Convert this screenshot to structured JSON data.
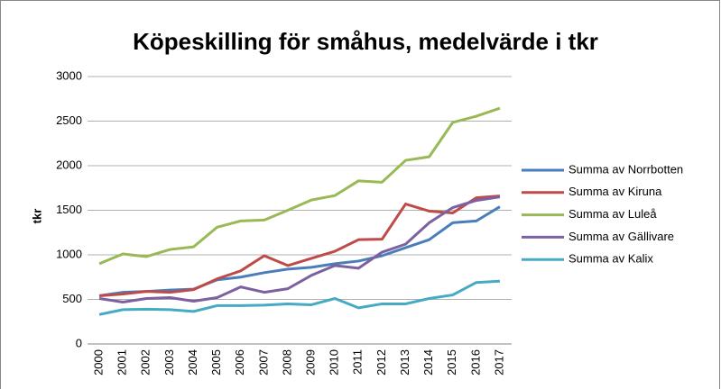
{
  "chart_data": {
    "type": "line",
    "title": "Köpeskilling för småhus, medelvärde i tkr",
    "y_label": "tkr",
    "categories": [
      "2000",
      "2001",
      "2002",
      "2003",
      "2004",
      "2005",
      "2006",
      "2007",
      "2008",
      "2009",
      "2010",
      "2011",
      "2012",
      "2013",
      "2014",
      "2015",
      "2016",
      "2017"
    ],
    "series": [
      {
        "name": "Summa av Norrbotten",
        "color": "#4a7ebb",
        "values": [
          540,
          580,
          590,
          605,
          615,
          720,
          750,
          800,
          840,
          860,
          900,
          930,
          990,
          1080,
          1170,
          1360,
          1380,
          1540
        ]
      },
      {
        "name": "Summa av Kiruna",
        "color": "#be4b48",
        "values": [
          540,
          560,
          590,
          580,
          610,
          730,
          820,
          990,
          880,
          960,
          1040,
          1170,
          1175,
          1570,
          1490,
          1470,
          1640,
          1660
        ]
      },
      {
        "name": "Summa av Luleå",
        "color": "#98b954",
        "values": [
          900,
          1010,
          980,
          1060,
          1090,
          1310,
          1380,
          1390,
          1500,
          1615,
          1665,
          1830,
          1815,
          2060,
          2100,
          2485,
          2555,
          2645
        ]
      },
      {
        "name": "Summa av Gällivare",
        "color": "#7d60a0",
        "values": [
          510,
          470,
          510,
          520,
          480,
          520,
          640,
          580,
          620,
          770,
          880,
          850,
          1030,
          1120,
          1360,
          1530,
          1610,
          1650
        ]
      },
      {
        "name": "Summa av Kalix",
        "color": "#46aac5",
        "values": [
          330,
          385,
          390,
          385,
          365,
          430,
          430,
          435,
          450,
          440,
          510,
          405,
          450,
          450,
          510,
          550,
          690,
          705
        ]
      }
    ],
    "ylim": [
      0,
      3000
    ],
    "yticks": [
      0,
      500,
      1000,
      1500,
      2000,
      2500,
      3000
    ],
    "grid": true,
    "legend": "right"
  }
}
